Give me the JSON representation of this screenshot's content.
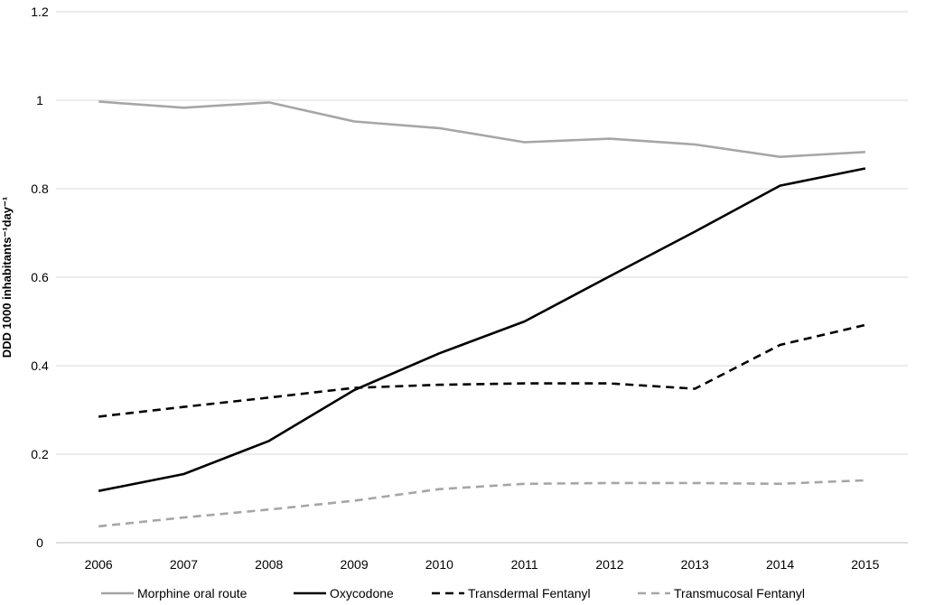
{
  "chart_data": {
    "type": "line",
    "title": "",
    "xlabel": "",
    "ylabel": "DDD 1000 inhabitants⁻¹day⁻¹",
    "categories": [
      "2006",
      "2007",
      "2008",
      "2009",
      "2010",
      "2011",
      "2012",
      "2013",
      "2014",
      "2015"
    ],
    "ylim": [
      0,
      1.2
    ],
    "yticks": [
      "0",
      "0.2",
      "0.4",
      "0.6",
      "0.8",
      "1",
      "1.2"
    ],
    "grid": "horizontal",
    "legend_position": "bottom",
    "series": [
      {
        "name": "Morphine oral route",
        "color": "#a6a6a6",
        "dash": "solid",
        "values": [
          0.997,
          0.983,
          0.995,
          0.952,
          0.937,
          0.905,
          0.913,
          0.9,
          0.872,
          0.883
        ]
      },
      {
        "name": "Oxycodone",
        "color": "#000000",
        "dash": "solid",
        "values": [
          0.117,
          0.155,
          0.23,
          0.345,
          0.428,
          0.5,
          0.602,
          0.703,
          0.807,
          0.846
        ]
      },
      {
        "name": "Transdermal Fentanyl",
        "color": "#000000",
        "dash": "dashed",
        "values": [
          0.285,
          0.307,
          0.328,
          0.35,
          0.357,
          0.36,
          0.36,
          0.348,
          0.447,
          0.492
        ]
      },
      {
        "name": "Transmucosal Fentanyl",
        "color": "#a6a6a6",
        "dash": "dashed",
        "values": [
          0.037,
          0.057,
          0.075,
          0.095,
          0.121,
          0.133,
          0.135,
          0.135,
          0.133,
          0.141
        ]
      }
    ]
  }
}
